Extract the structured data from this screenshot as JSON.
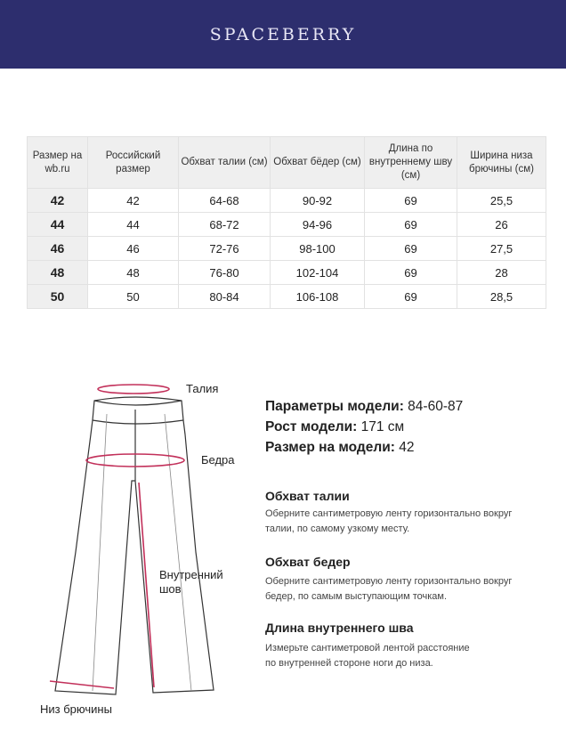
{
  "brand": {
    "logo": "SPACEBERRY",
    "bg": "#2d2e6e"
  },
  "table": {
    "headers": [
      "Размер на wb.ru",
      "Российский размер",
      "Обхват талии (см)",
      "Обхват бёдер (см)",
      "Длина по внутреннему шву (см)",
      "Ширина низа брючины (см)"
    ],
    "rows": [
      [
        "42",
        "42",
        "64-68",
        "90-92",
        "69",
        "25,5"
      ],
      [
        "44",
        "44",
        "68-72",
        "94-96",
        "69",
        "26"
      ],
      [
        "46",
        "46",
        "72-76",
        "98-100",
        "69",
        "27,5"
      ],
      [
        "48",
        "48",
        "76-80",
        "102-104",
        "69",
        "28"
      ],
      [
        "50",
        "50",
        "80-84",
        "106-108",
        "69",
        "28,5"
      ]
    ]
  },
  "diagram": {
    "waist": "Талия",
    "hips": "Бедра",
    "inseam_1": "Внутренний",
    "inseam_2": "шов",
    "hem": "Низ брючины",
    "accent": "#c2305a"
  },
  "model": {
    "params_label": "Параметры модели:",
    "params_value": "84-60-87",
    "height_label": "Рост модели:",
    "height_value": "171 см",
    "size_label": "Размер на модели:",
    "size_value": "42"
  },
  "instructions": [
    {
      "title": "Обхват талии",
      "line1": "Оберните сантиметровую ленту горизонтально вокруг",
      "line2": "талии, по самому узкому месту."
    },
    {
      "title": "Обхват бедер",
      "line1": "Оберните сантиметровую ленту горизонтально вокруг",
      "line2": "бедер, по самым выступающим точкам."
    },
    {
      "title": "Длина внутреннего шва",
      "line1": "Измерьте сантиметровой лентой расстояние",
      "line2": "по внутренней стороне ноги до низа."
    }
  ]
}
